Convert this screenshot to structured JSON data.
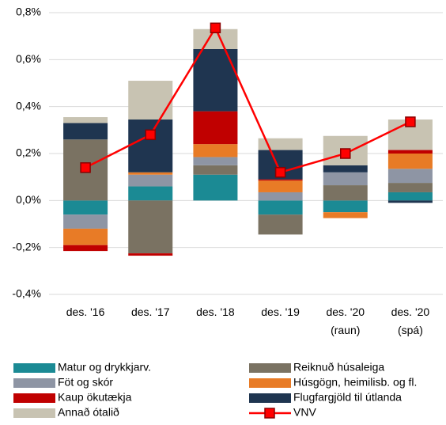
{
  "chart_data": {
    "type": "stacked-bar-line",
    "categories": [
      "des. '16",
      "des. '17",
      "des. '18",
      "des. '19",
      "des. '20\n(raun)",
      "des. '20\n(spá)"
    ],
    "series": [
      {
        "name": "Matur og drykkjarv.",
        "color": "#1b8a94",
        "values": [
          -0.06,
          0.06,
          0.11,
          -0.06,
          -0.05,
          0.035
        ]
      },
      {
        "name": "Reiknuð húsaleiga",
        "color": "#7a7262",
        "values": [
          0.26,
          -0.225,
          0.04,
          -0.085,
          0.065,
          0.04
        ]
      },
      {
        "name": "Föt og skór",
        "color": "#8e95a4",
        "values": [
          -0.06,
          0.05,
          0.035,
          0.035,
          0.055,
          0.06
        ]
      },
      {
        "name": "Húsgögn, heimilisb. og fl.",
        "color": "#e87b26",
        "values": [
          -0.07,
          0.01,
          0.055,
          0.05,
          -0.025,
          0.065
        ]
      },
      {
        "name": "Kaup ökutækja",
        "color": "#c00000",
        "values": [
          -0.025,
          -0.01,
          0.14,
          0.005,
          0,
          0.015
        ]
      },
      {
        "name": "Flugfargjöld til útlanda",
        "color": "#1f3550",
        "values": [
          0.07,
          0.225,
          0.265,
          0.125,
          0.03,
          -0.01
        ]
      },
      {
        "name": "Annað ótalið",
        "color": "#c8c3b2",
        "values": [
          0.025,
          0.165,
          0.085,
          0.05,
          0.125,
          0.13
        ]
      },
      {
        "name": "VNV",
        "color": "#ff0000",
        "type": "line",
        "values": [
          0.14,
          0.28,
          0.735,
          0.12,
          0.2,
          0.335
        ]
      }
    ],
    "ylim": [
      -0.4,
      0.8
    ],
    "yticks": [
      {
        "value": -0.4,
        "label": "-0,4%"
      },
      {
        "value": -0.2,
        "label": "-0,2%"
      },
      {
        "value": 0,
        "label": "0,0%"
      },
      {
        "value": 0.2,
        "label": "0,2%"
      },
      {
        "value": 0.4,
        "label": "0,4%"
      },
      {
        "value": 0.6,
        "label": "0,6%"
      },
      {
        "value": 0.8,
        "label": "0,8%"
      }
    ],
    "grid": true
  }
}
